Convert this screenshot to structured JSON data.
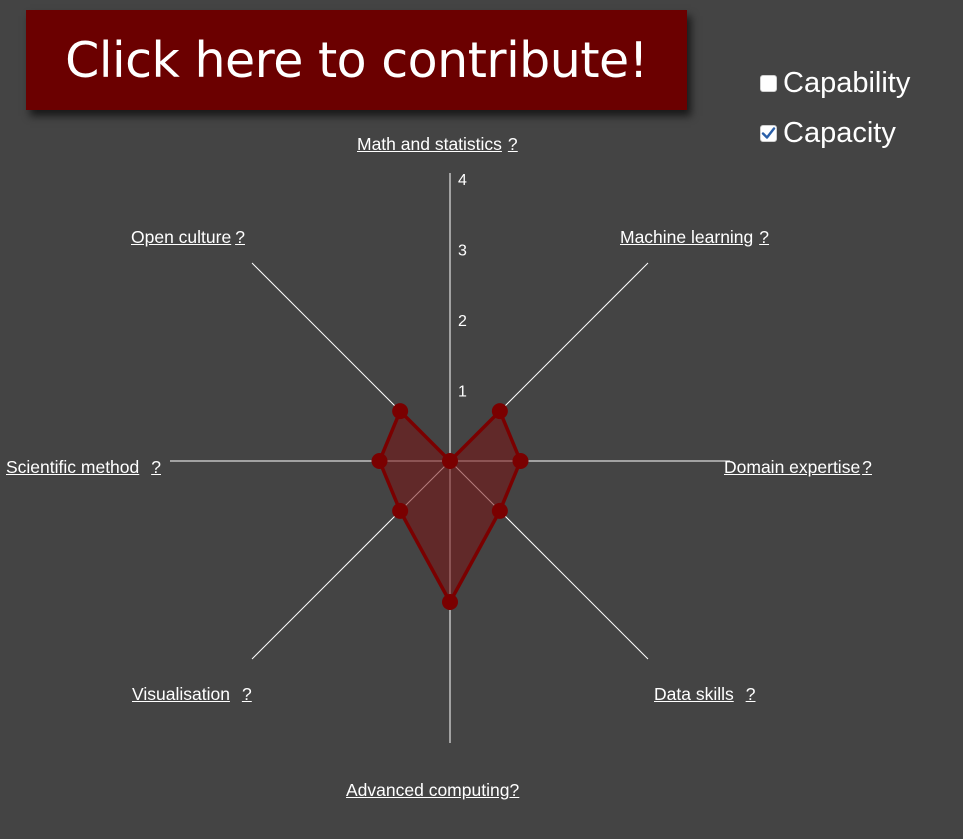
{
  "banner": {
    "label": "Click here to contribute!"
  },
  "legend": [
    {
      "label": "Capability",
      "checked": false
    },
    {
      "label": "Capacity",
      "checked": true
    }
  ],
  "help_mark": "?",
  "colors": {
    "background": "#444444",
    "fill": "#7a1414",
    "stroke": "#7a0000",
    "point": "#7a0000",
    "axis": "#ffffff",
    "banner": "#6b0000"
  },
  "chart_data": {
    "type": "radar",
    "axes": [
      "Math and statistics",
      "Machine learning",
      "Domain expertise",
      "Data skills",
      "Advanced computing",
      "Visualisation",
      "Scientific method",
      "Open culture"
    ],
    "rlim": [
      0,
      4
    ],
    "ticks": [
      "1",
      "2",
      "3",
      "4"
    ],
    "series": [
      {
        "values": [
          0,
          1,
          1,
          1,
          2,
          1,
          1,
          1
        ]
      }
    ]
  }
}
